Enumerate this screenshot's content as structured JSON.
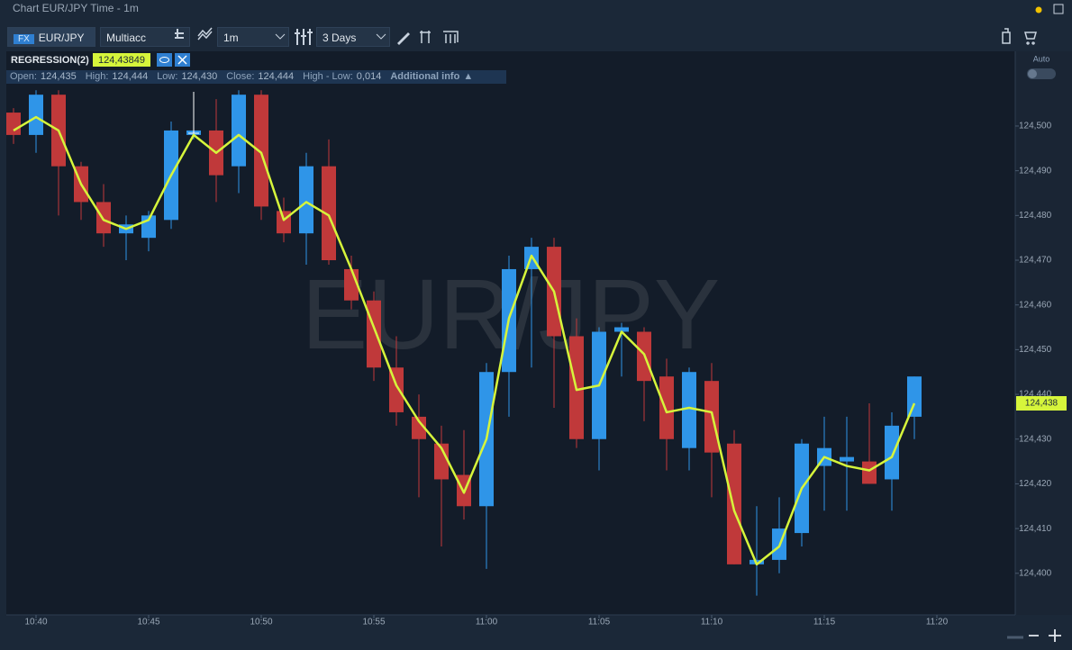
{
  "window": {
    "title": "Chart EUR/JPY Time - 1m"
  },
  "toolbar": {
    "market": "FX",
    "symbol": "EUR/JPY",
    "account": "Multiacc",
    "timeframe": "1m",
    "range": "3 Days"
  },
  "indicator": {
    "name": "REGRESSION(2)",
    "value_label": "124,43849"
  },
  "info_bar": {
    "open_label": "Open:",
    "open": "124,435",
    "high_label": "High:",
    "high": "124,444",
    "low_label": "Low:",
    "low": "124,430",
    "close_label": "Close:",
    "close": "124,444",
    "range_label": "High - Low:",
    "range": "0,014",
    "more": "Additional info"
  },
  "scale_toggle": "Auto",
  "chart_data": {
    "type": "candlestick",
    "watermark": "EUR/JPY",
    "x": [
      639,
      640,
      641,
      642,
      643,
      644,
      645,
      646,
      647,
      648,
      649,
      650,
      651,
      652,
      653,
      654,
      655,
      656,
      657,
      658,
      659,
      660,
      661,
      662,
      663,
      664,
      665,
      666,
      667,
      668,
      669,
      670,
      671,
      672,
      673,
      674,
      675,
      676,
      677,
      678,
      679
    ],
    "open": [
      124.503,
      124.498,
      124.507,
      124.491,
      124.483,
      124.476,
      124.475,
      124.479,
      124.498,
      124.499,
      124.491,
      124.507,
      124.481,
      124.476,
      124.491,
      124.468,
      124.461,
      124.446,
      124.435,
      124.429,
      124.422,
      124.415,
      124.445,
      124.468,
      124.473,
      124.453,
      124.43,
      124.454,
      124.454,
      124.444,
      124.428,
      124.443,
      124.429,
      124.402,
      124.403,
      124.409,
      124.424,
      124.425,
      124.425,
      124.421,
      124.435
    ],
    "high": [
      124.504,
      124.508,
      124.508,
      124.492,
      124.487,
      124.48,
      124.481,
      124.501,
      124.5,
      124.506,
      124.508,
      124.508,
      124.484,
      124.494,
      124.497,
      124.471,
      124.463,
      124.453,
      124.44,
      124.433,
      124.432,
      124.447,
      124.471,
      124.475,
      124.475,
      124.457,
      124.455,
      124.456,
      124.455,
      124.448,
      124.446,
      124.447,
      124.432,
      124.415,
      124.417,
      124.43,
      124.435,
      124.435,
      124.438,
      124.436,
      124.444
    ],
    "low": [
      124.496,
      124.494,
      124.48,
      124.479,
      124.473,
      124.47,
      124.472,
      124.477,
      124.497,
      124.483,
      124.485,
      124.479,
      124.474,
      124.469,
      124.469,
      124.459,
      124.443,
      124.433,
      124.417,
      124.406,
      124.412,
      124.401,
      124.435,
      124.446,
      124.437,
      124.428,
      124.423,
      124.444,
      124.434,
      124.423,
      124.423,
      124.417,
      124.402,
      124.395,
      124.4,
      124.406,
      124.414,
      124.414,
      124.42,
      124.414,
      124.43
    ],
    "close": [
      124.498,
      124.507,
      124.491,
      124.483,
      124.476,
      124.478,
      124.48,
      124.499,
      124.499,
      124.489,
      124.507,
      124.482,
      124.476,
      124.491,
      124.47,
      124.461,
      124.446,
      124.436,
      124.43,
      124.421,
      124.415,
      124.445,
      124.468,
      124.473,
      124.453,
      124.43,
      124.454,
      124.455,
      124.443,
      124.43,
      124.445,
      124.427,
      124.402,
      124.403,
      124.41,
      124.429,
      124.428,
      124.426,
      124.42,
      124.433,
      124.444
    ],
    "regression": {
      "color": "#d6f53b",
      "values": [
        124.499,
        124.502,
        124.499,
        124.487,
        124.479,
        124.477,
        124.479,
        124.489,
        124.498,
        124.494,
        124.498,
        124.494,
        124.479,
        124.483,
        124.48,
        124.468,
        124.455,
        124.442,
        124.434,
        124.428,
        124.418,
        124.43,
        124.457,
        124.471,
        124.463,
        124.441,
        124.442,
        124.454,
        124.449,
        124.436,
        124.437,
        124.436,
        124.414,
        124.402,
        124.406,
        124.419,
        124.426,
        124.424,
        124.423,
        124.426,
        124.438
      ]
    },
    "up_color": "#2f95e8",
    "down_color": "#c0393a",
    "last_price": {
      "value": 124.438,
      "label": "124,438"
    },
    "xlim": [
      638.68,
      683.48
    ],
    "ylim": [
      124.3907,
      124.5167
    ],
    "xticks": [
      {
        "value": 640,
        "label": "10:40"
      },
      {
        "value": 645,
        "label": "10:45"
      },
      {
        "value": 650,
        "label": "10:50"
      },
      {
        "value": 655,
        "label": "10:55"
      },
      {
        "value": 660,
        "label": "11:00"
      },
      {
        "value": 665,
        "label": "11:05"
      },
      {
        "value": 670,
        "label": "11:10"
      },
      {
        "value": 675,
        "label": "11:15"
      },
      {
        "value": 680,
        "label": "11:20"
      }
    ],
    "yticks": [
      {
        "value": 124.4,
        "label": "124,400"
      },
      {
        "value": 124.41,
        "label": "124,410"
      },
      {
        "value": 124.42,
        "label": "124,420"
      },
      {
        "value": 124.43,
        "label": "124,430"
      },
      {
        "value": 124.44,
        "label": "124,440"
      },
      {
        "value": 124.45,
        "label": "124,450"
      },
      {
        "value": 124.46,
        "label": "124,460"
      },
      {
        "value": 124.47,
        "label": "124,470"
      },
      {
        "value": 124.48,
        "label": "124,480"
      },
      {
        "value": 124.49,
        "label": "124,490"
      },
      {
        "value": 124.5,
        "label": "124,500"
      }
    ],
    "grid": false
  }
}
